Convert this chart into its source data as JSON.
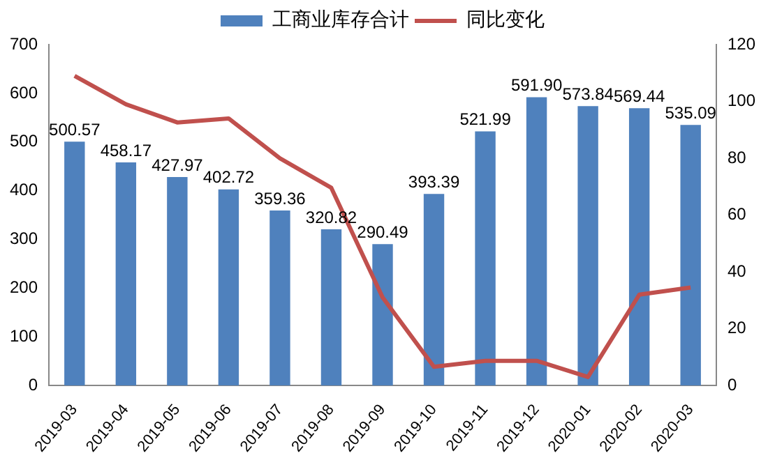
{
  "chart_data": {
    "type": "bar",
    "categories": [
      "2019-03",
      "2019-04",
      "2019-05",
      "2019-06",
      "2019-07",
      "2019-08",
      "2019-09",
      "2019-10",
      "2019-11",
      "2019-12",
      "2020-01",
      "2020-02",
      "2020-03"
    ],
    "series": [
      {
        "name": "工商业库存合计",
        "color": "#4f81bd",
        "values": [
          500.57,
          458.17,
          427.97,
          402.72,
          359.36,
          320.82,
          290.49,
          393.39,
          521.99,
          591.9,
          573.84,
          569.44,
          535.09
        ],
        "value_labels": [
          "500.57",
          "458.17",
          "427.97",
          "402.72",
          "359.36",
          "320.82",
          "290.49",
          "393.39",
          "521.99",
          "591.90",
          "573.84",
          "569.44",
          "535.09"
        ]
      },
      {
        "name": "同比变化",
        "type": "line",
        "axis": "y2",
        "color": "#c0504d",
        "values": [
          109,
          99,
          92.6,
          94,
          80,
          69.6,
          31,
          6.6,
          8.7,
          8.7,
          3,
          32,
          34.5
        ]
      }
    ],
    "ylim": [
      0,
      700
    ],
    "yticks": [
      0,
      100,
      200,
      300,
      400,
      500,
      600,
      700
    ],
    "y2lim": [
      0,
      120
    ],
    "y2ticks": [
      0,
      20,
      40,
      60,
      80,
      100,
      120
    ],
    "grid": false,
    "legend": "top",
    "marker": "none"
  }
}
